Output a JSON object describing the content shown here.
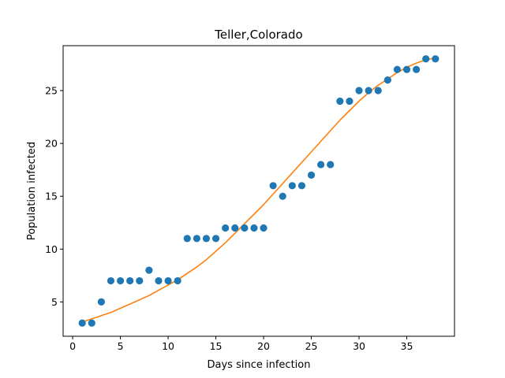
{
  "chart_data": {
    "type": "scatter",
    "title": "Teller,Colorado",
    "xlabel": "Days since infection",
    "ylabel": "Population infected",
    "xlim": [
      -1,
      40
    ],
    "ylim": [
      1.75,
      29.25
    ],
    "xticks": [
      0,
      5,
      10,
      15,
      20,
      25,
      30,
      35
    ],
    "yticks": [
      5,
      10,
      15,
      20,
      25
    ],
    "grid": false,
    "legend": "none",
    "series": [
      {
        "kind": "scatter",
        "color": "#1f77b4",
        "x": [
          1,
          2,
          3,
          4,
          5,
          6,
          7,
          8,
          9,
          10,
          11,
          12,
          13,
          14,
          15,
          16,
          17,
          18,
          19,
          20,
          21,
          22,
          23,
          24,
          25,
          26,
          27,
          28,
          29,
          30,
          31,
          32,
          33,
          34,
          35,
          36,
          37,
          38
        ],
        "y": [
          3,
          3,
          5,
          7,
          7,
          7,
          7,
          8,
          7,
          7,
          7,
          11,
          11,
          11,
          11,
          12,
          12,
          12,
          12,
          12,
          16,
          15,
          16,
          16,
          17,
          18,
          18,
          24,
          24,
          25,
          25,
          25,
          26,
          27,
          27,
          27,
          28,
          28
        ]
      },
      {
        "kind": "line",
        "color": "#ff7f0e",
        "x": [
          1,
          2,
          3,
          4,
          5,
          6,
          7,
          8,
          9,
          10,
          11,
          12,
          13,
          14,
          15,
          16,
          17,
          18,
          19,
          20,
          21,
          22,
          23,
          24,
          25,
          26,
          27,
          28,
          29,
          30,
          31,
          32,
          33,
          34,
          35,
          36,
          37,
          38
        ],
        "y": [
          3.1,
          3.4,
          3.7,
          4.0,
          4.4,
          4.8,
          5.2,
          5.6,
          6.1,
          6.6,
          7.1,
          7.7,
          8.3,
          9.0,
          9.8,
          10.6,
          11.5,
          12.4,
          13.3,
          14.2,
          15.2,
          16.2,
          17.2,
          18.2,
          19.2,
          20.2,
          21.2,
          22.2,
          23.1,
          24.0,
          24.8,
          25.5,
          26.1,
          26.7,
          27.2,
          27.6,
          27.9,
          28.1
        ]
      }
    ]
  }
}
